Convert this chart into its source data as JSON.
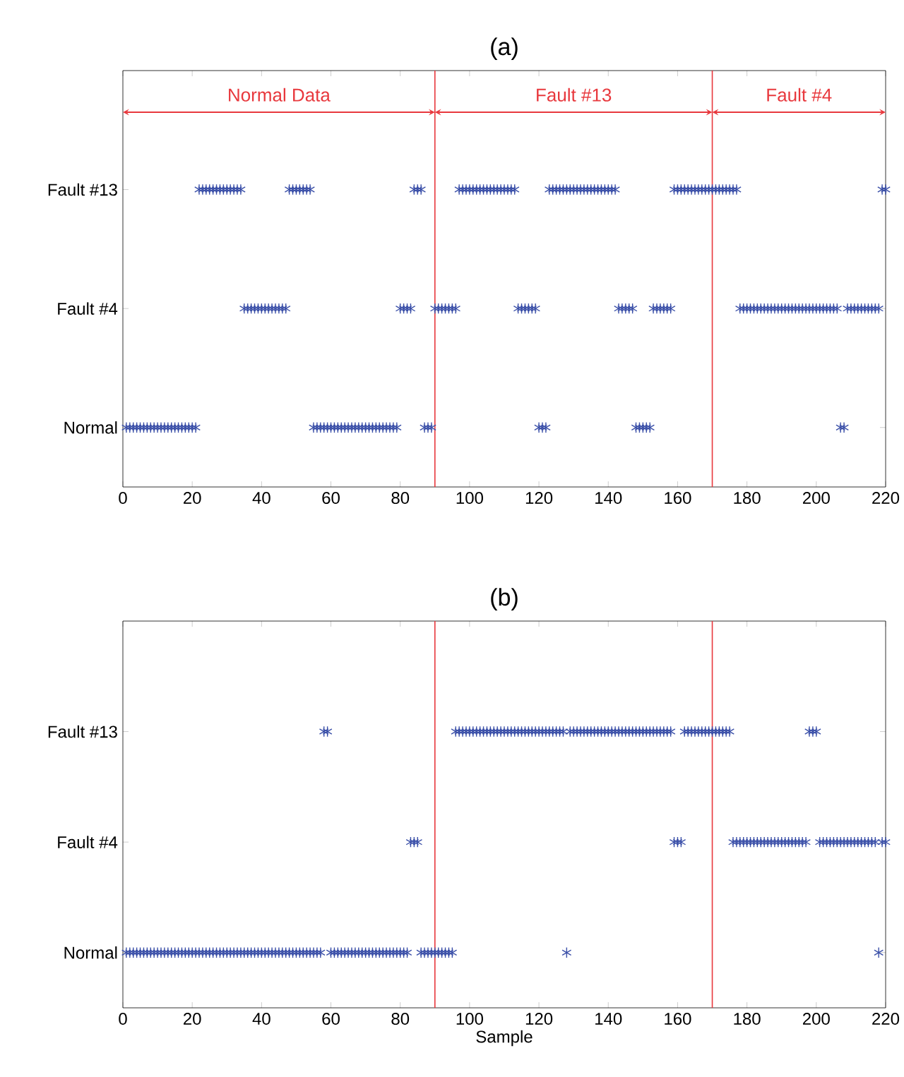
{
  "chart_data": [
    {
      "type": "scatter",
      "title": "(a)",
      "marker": "cross",
      "orientation": "horizontal",
      "categories": [
        "Fault #13",
        "Fault #4",
        "Normal"
      ],
      "xlim": [
        0,
        220
      ],
      "xticks": [
        0,
        20,
        40,
        60,
        80,
        100,
        120,
        140,
        160,
        180,
        200,
        220
      ],
      "ref_lines": [
        {
          "axis": "x",
          "value": 90,
          "color": "#e8383d"
        },
        {
          "axis": "x",
          "value": 170,
          "color": "#e8383d"
        }
      ],
      "annotations": [
        "Normal Data",
        "Fault #13",
        "Fault #4"
      ],
      "series": [
        {
          "color": "#3a4fa8",
          "x": [
            "Normal",
            "Normal",
            "Normal",
            "Normal",
            "Normal",
            "Normal",
            "Normal",
            "Normal",
            "Normal",
            "Normal",
            "Normal",
            "Normal",
            "Normal",
            "Normal",
            "Normal",
            "Normal",
            "Normal",
            "Normal",
            "Normal",
            "Normal",
            "Normal",
            "Normal",
            "Normal",
            "Normal",
            "Normal",
            "Normal",
            "Normal",
            "Normal",
            "Normal",
            "Normal",
            "Normal",
            "Normal",
            "Normal",
            "Normal",
            "Normal",
            "Normal",
            "Normal",
            "Normal",
            "Normal",
            "Normal",
            "Normal",
            "Normal",
            "Normal",
            "Normal",
            "Normal",
            "Normal",
            "Normal",
            "Normal",
            "Normal",
            "Normal",
            "Normal",
            "Normal",
            "Normal",
            "Normal",
            "Normal",
            "Normal",
            "Normal",
            "Normal",
            "Normal"
          ],
          "values": [
            1,
            2,
            3,
            4,
            5,
            6,
            7,
            8,
            9,
            10,
            11,
            12,
            13,
            14,
            15,
            16,
            17,
            18,
            19,
            20,
            21,
            55,
            56,
            57,
            58,
            59,
            60,
            61,
            62,
            63,
            64,
            65,
            66,
            67,
            68,
            69,
            70,
            71,
            72,
            73,
            74,
            75,
            76,
            77,
            78,
            79,
            87,
            88,
            89,
            120,
            121,
            122,
            148,
            149,
            150,
            151,
            152,
            207,
            208
          ]
        },
        {
          "color": "#3a4fa8",
          "x": [
            "Fault #4",
            "Fault #4",
            "Fault #4",
            "Fault #4",
            "Fault #4",
            "Fault #4",
            "Fault #4",
            "Fault #4",
            "Fault #4",
            "Fault #4",
            "Fault #4",
            "Fault #4",
            "Fault #4",
            "Fault #4",
            "Fault #4",
            "Fault #4",
            "Fault #4",
            "Fault #4",
            "Fault #4",
            "Fault #4",
            "Fault #4",
            "Fault #4",
            "Fault #4",
            "Fault #4",
            "Fault #4",
            "Fault #4",
            "Fault #4",
            "Fault #4",
            "Fault #4",
            "Fault #4",
            "Fault #4",
            "Fault #4",
            "Fault #4",
            "Fault #4",
            "Fault #4",
            "Fault #4",
            "Fault #4",
            "Fault #4",
            "Fault #4",
            "Fault #4",
            "Fault #4",
            "Fault #4",
            "Fault #4",
            "Fault #4",
            "Fault #4",
            "Fault #4",
            "Fault #4",
            "Fault #4",
            "Fault #4",
            "Fault #4",
            "Fault #4",
            "Fault #4",
            "Fault #4",
            "Fault #4",
            "Fault #4",
            "Fault #4",
            "Fault #4",
            "Fault #4",
            "Fault #4",
            "Fault #4",
            "Fault #4",
            "Fault #4",
            "Fault #4",
            "Fault #4",
            "Fault #4",
            "Fault #4",
            "Fault #4",
            "Fault #4",
            "Fault #4",
            "Fault #4",
            "Fault #4",
            "Fault #4",
            "Fault #4",
            "Fault #4",
            "Fault #4",
            "Fault #4",
            "Fault #4",
            "Fault #4",
            "Fault #4",
            "Fault #4"
          ],
          "values": [
            35,
            36,
            37,
            38,
            39,
            40,
            41,
            42,
            43,
            44,
            45,
            46,
            47,
            80,
            81,
            82,
            83,
            90,
            91,
            92,
            93,
            94,
            95,
            96,
            114,
            115,
            116,
            117,
            118,
            119,
            143,
            144,
            145,
            146,
            147,
            153,
            154,
            155,
            156,
            157,
            158,
            178,
            179,
            180,
            181,
            182,
            183,
            184,
            185,
            186,
            187,
            188,
            189,
            190,
            191,
            192,
            193,
            194,
            195,
            196,
            197,
            198,
            199,
            200,
            201,
            202,
            203,
            204,
            205,
            206,
            209,
            210,
            211,
            212,
            213,
            214,
            215,
            216,
            217,
            218
          ]
        },
        {
          "color": "#3a4fa8",
          "x": [
            "Fault #13",
            "Fault #13",
            "Fault #13",
            "Fault #13",
            "Fault #13",
            "Fault #13",
            "Fault #13",
            "Fault #13",
            "Fault #13",
            "Fault #13",
            "Fault #13",
            "Fault #13",
            "Fault #13",
            "Fault #13",
            "Fault #13",
            "Fault #13",
            "Fault #13",
            "Fault #13",
            "Fault #13",
            "Fault #13",
            "Fault #13",
            "Fault #13",
            "Fault #13",
            "Fault #13",
            "Fault #13",
            "Fault #13",
            "Fault #13",
            "Fault #13",
            "Fault #13",
            "Fault #13",
            "Fault #13",
            "Fault #13",
            "Fault #13",
            "Fault #13",
            "Fault #13",
            "Fault #13",
            "Fault #13",
            "Fault #13",
            "Fault #13",
            "Fault #13",
            "Fault #13",
            "Fault #13",
            "Fault #13",
            "Fault #13",
            "Fault #13",
            "Fault #13",
            "Fault #13",
            "Fault #13",
            "Fault #13",
            "Fault #13",
            "Fault #13",
            "Fault #13",
            "Fault #13",
            "Fault #13",
            "Fault #13",
            "Fault #13",
            "Fault #13",
            "Fault #13",
            "Fault #13",
            "Fault #13",
            "Fault #13",
            "Fault #13",
            "Fault #13",
            "Fault #13",
            "Fault #13",
            "Fault #13",
            "Fault #13",
            "Fault #13",
            "Fault #13",
            "Fault #13",
            "Fault #13",
            "Fault #13",
            "Fault #13",
            "Fault #13",
            "Fault #13",
            "Fault #13",
            "Fault #13",
            "Fault #13",
            "Fault #13",
            "Fault #13",
            "Fault #13"
          ],
          "values": [
            22,
            23,
            24,
            25,
            26,
            27,
            28,
            29,
            30,
            31,
            32,
            33,
            34,
            48,
            49,
            50,
            51,
            52,
            53,
            54,
            84,
            85,
            86,
            97,
            98,
            99,
            100,
            101,
            102,
            103,
            104,
            105,
            106,
            107,
            108,
            109,
            110,
            111,
            112,
            113,
            123,
            124,
            125,
            126,
            127,
            128,
            129,
            130,
            131,
            132,
            133,
            134,
            135,
            136,
            137,
            138,
            139,
            140,
            141,
            142,
            159,
            160,
            161,
            162,
            163,
            164,
            165,
            166,
            167,
            168,
            169,
            170,
            171,
            172,
            173,
            174,
            175,
            176,
            177,
            219,
            220
          ]
        }
      ]
    },
    {
      "type": "scatter",
      "title": "(b)",
      "xlabel": "Sample",
      "marker": "cross",
      "orientation": "horizontal",
      "categories": [
        "Fault #13",
        "Fault #4",
        "Normal"
      ],
      "xlim": [
        0,
        220
      ],
      "xticks": [
        0,
        20,
        40,
        60,
        80,
        100,
        120,
        140,
        160,
        180,
        200,
        220
      ],
      "ref_lines": [
        {
          "axis": "x",
          "value": 90,
          "color": "#e8383d"
        },
        {
          "axis": "x",
          "value": 170,
          "color": "#e8383d"
        }
      ],
      "series": [
        {
          "color": "#3a4fa8",
          "x": [
            "Normal",
            "Normal",
            "Normal",
            "Normal",
            "Normal",
            "Normal",
            "Normal",
            "Normal",
            "Normal",
            "Normal",
            "Normal",
            "Normal",
            "Normal",
            "Normal",
            "Normal",
            "Normal",
            "Normal",
            "Normal",
            "Normal",
            "Normal",
            "Normal",
            "Normal",
            "Normal",
            "Normal",
            "Normal",
            "Normal",
            "Normal",
            "Normal",
            "Normal",
            "Normal",
            "Normal",
            "Normal",
            "Normal",
            "Normal",
            "Normal",
            "Normal",
            "Normal",
            "Normal",
            "Normal",
            "Normal",
            "Normal",
            "Normal",
            "Normal",
            "Normal",
            "Normal",
            "Normal",
            "Normal",
            "Normal",
            "Normal",
            "Normal",
            "Normal",
            "Normal",
            "Normal",
            "Normal",
            "Normal",
            "Normal",
            "Normal",
            "Normal",
            "Normal",
            "Normal",
            "Normal",
            "Normal",
            "Normal",
            "Normal",
            "Normal",
            "Normal",
            "Normal",
            "Normal",
            "Normal",
            "Normal",
            "Normal",
            "Normal",
            "Normal",
            "Normal",
            "Normal",
            "Normal",
            "Normal",
            "Normal",
            "Normal",
            "Normal",
            "Normal",
            "Normal",
            "Normal",
            "Normal",
            "Normal",
            "Normal",
            "Normal",
            "Normal",
            "Normal",
            "Normal",
            "Normal",
            "Normal"
          ],
          "values": [
            1,
            2,
            3,
            4,
            5,
            6,
            7,
            8,
            9,
            10,
            11,
            12,
            13,
            14,
            15,
            16,
            17,
            18,
            19,
            20,
            21,
            22,
            23,
            24,
            25,
            26,
            27,
            28,
            29,
            30,
            31,
            32,
            33,
            34,
            35,
            36,
            37,
            38,
            39,
            40,
            41,
            42,
            43,
            44,
            45,
            46,
            47,
            48,
            49,
            50,
            51,
            52,
            53,
            54,
            55,
            56,
            57,
            60,
            61,
            62,
            63,
            64,
            65,
            66,
            67,
            68,
            69,
            70,
            71,
            72,
            73,
            74,
            75,
            76,
            77,
            78,
            79,
            80,
            81,
            82,
            86,
            87,
            88,
            89,
            90,
            91,
            92,
            93,
            94,
            95,
            128,
            218
          ]
        },
        {
          "color": "#3a4fa8",
          "x": [
            "Fault #4",
            "Fault #4",
            "Fault #4",
            "Fault #4",
            "Fault #4",
            "Fault #4",
            "Fault #4",
            "Fault #4",
            "Fault #4",
            "Fault #4",
            "Fault #4",
            "Fault #4",
            "Fault #4",
            "Fault #4",
            "Fault #4",
            "Fault #4",
            "Fault #4",
            "Fault #4",
            "Fault #4",
            "Fault #4",
            "Fault #4",
            "Fault #4",
            "Fault #4",
            "Fault #4",
            "Fault #4",
            "Fault #4",
            "Fault #4",
            "Fault #4",
            "Fault #4",
            "Fault #4",
            "Fault #4",
            "Fault #4",
            "Fault #4",
            "Fault #4",
            "Fault #4",
            "Fault #4",
            "Fault #4",
            "Fault #4",
            "Fault #4",
            "Fault #4",
            "Fault #4",
            "Fault #4",
            "Fault #4",
            "Fault #4",
            "Fault #4",
            "Fault #4",
            "Fault #4"
          ],
          "values": [
            83,
            84,
            85,
            159,
            160,
            161,
            176,
            177,
            178,
            179,
            180,
            181,
            182,
            183,
            184,
            185,
            186,
            187,
            188,
            189,
            190,
            191,
            192,
            193,
            194,
            195,
            196,
            197,
            201,
            202,
            203,
            204,
            205,
            206,
            207,
            208,
            209,
            210,
            211,
            212,
            213,
            214,
            215,
            216,
            217,
            219,
            220
          ]
        },
        {
          "color": "#3a4fa8",
          "x": [
            "Fault #13",
            "Fault #13",
            "Fault #13",
            "Fault #13",
            "Fault #13",
            "Fault #13",
            "Fault #13",
            "Fault #13",
            "Fault #13",
            "Fault #13",
            "Fault #13",
            "Fault #13",
            "Fault #13",
            "Fault #13",
            "Fault #13",
            "Fault #13",
            "Fault #13",
            "Fault #13",
            "Fault #13",
            "Fault #13",
            "Fault #13",
            "Fault #13",
            "Fault #13",
            "Fault #13",
            "Fault #13",
            "Fault #13",
            "Fault #13",
            "Fault #13",
            "Fault #13",
            "Fault #13",
            "Fault #13",
            "Fault #13",
            "Fault #13",
            "Fault #13",
            "Fault #13",
            "Fault #13",
            "Fault #13",
            "Fault #13",
            "Fault #13",
            "Fault #13",
            "Fault #13",
            "Fault #13",
            "Fault #13",
            "Fault #13",
            "Fault #13",
            "Fault #13",
            "Fault #13",
            "Fault #13",
            "Fault #13",
            "Fault #13",
            "Fault #13",
            "Fault #13",
            "Fault #13",
            "Fault #13",
            "Fault #13",
            "Fault #13",
            "Fault #13",
            "Fault #13",
            "Fault #13",
            "Fault #13",
            "Fault #13",
            "Fault #13",
            "Fault #13",
            "Fault #13",
            "Fault #13",
            "Fault #13",
            "Fault #13",
            "Fault #13",
            "Fault #13",
            "Fault #13",
            "Fault #13",
            "Fault #13",
            "Fault #13",
            "Fault #13",
            "Fault #13",
            "Fault #13",
            "Fault #13",
            "Fault #13",
            "Fault #13",
            "Fault #13",
            "Fault #13"
          ],
          "values": [
            58,
            59,
            96,
            97,
            98,
            99,
            100,
            101,
            102,
            103,
            104,
            105,
            106,
            107,
            108,
            109,
            110,
            111,
            112,
            113,
            114,
            115,
            116,
            117,
            118,
            119,
            120,
            121,
            122,
            123,
            124,
            125,
            126,
            127,
            129,
            130,
            131,
            132,
            133,
            134,
            135,
            136,
            137,
            138,
            139,
            140,
            141,
            142,
            143,
            144,
            145,
            146,
            147,
            148,
            149,
            150,
            151,
            152,
            153,
            154,
            155,
            156,
            157,
            158,
            162,
            163,
            164,
            165,
            166,
            167,
            168,
            169,
            170,
            171,
            172,
            173,
            174,
            175,
            198,
            199,
            200
          ]
        }
      ]
    }
  ]
}
